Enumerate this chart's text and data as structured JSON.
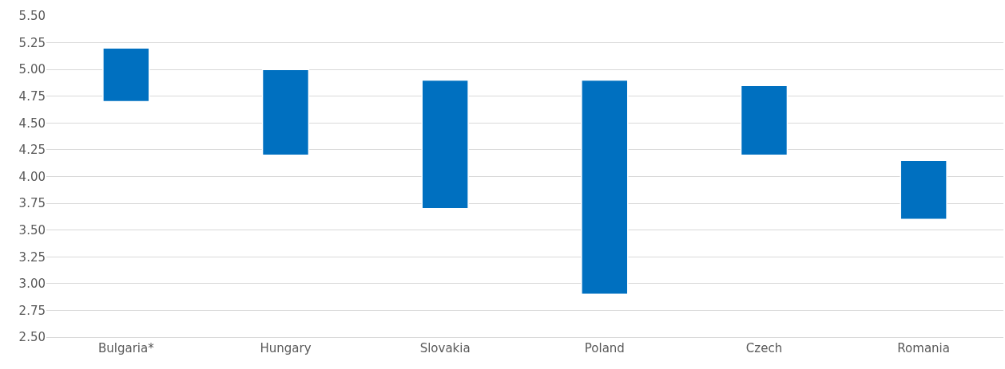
{
  "chart_data": {
    "type": "bar",
    "categories": [
      "Bulgaria*",
      "Hungary",
      "Slovakia",
      "Poland",
      "Czech",
      "Romania"
    ],
    "base": [
      4.7,
      4.2,
      3.7,
      2.9,
      4.2,
      3.6
    ],
    "values": [
      0.5,
      0.8,
      1.2,
      2.0,
      0.65,
      0.55
    ],
    "color": "#0070c0",
    "ylim": [
      2.5,
      5.5
    ],
    "yticks": [
      {
        "value": 2.5,
        "label": "2.50"
      },
      {
        "value": 2.75,
        "label": "2.75"
      },
      {
        "value": 3,
        "label": "3.00"
      },
      {
        "value": 3.25,
        "label": "3.25"
      },
      {
        "value": 3.5,
        "label": "3.50"
      },
      {
        "value": 3.75,
        "label": "3.75"
      },
      {
        "value": 4,
        "label": "4.00"
      },
      {
        "value": 4.25,
        "label": "4.25"
      },
      {
        "value": 4.5,
        "label": "4.50"
      },
      {
        "value": 4.75,
        "label": "4.75"
      },
      {
        "value": 5,
        "label": "5.00"
      },
      {
        "value": 5.25,
        "label": "5.25"
      },
      {
        "value": 5.5,
        "label": "5.50"
      }
    ],
    "grid": "y"
  }
}
